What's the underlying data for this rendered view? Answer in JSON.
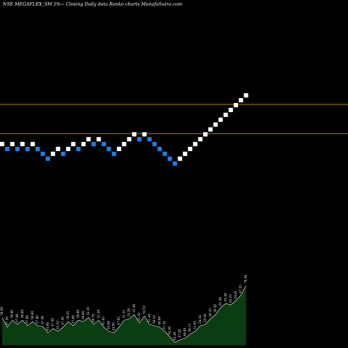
{
  "chart_data": {
    "type": "renko",
    "title": "NSE MEGAFLEX_SM 5%~ Closing Daily data Renko charts MunafaSutra.com",
    "colors": {
      "background": "#000000",
      "up_brick": "#ffffff",
      "down_brick": "#1e7ee6",
      "resistance_line": "#b8860b",
      "volume_area": "#0b3d12",
      "volume_line": "#ffffff"
    },
    "price_lines": [
      34.2,
      30.0
    ],
    "bricks": [
      {
        "price": 28.5,
        "dir": "up"
      },
      {
        "price": 27.8,
        "dir": "down"
      },
      {
        "price": 28.5,
        "dir": "up"
      },
      {
        "price": 27.8,
        "dir": "down"
      },
      {
        "price": 28.5,
        "dir": "up"
      },
      {
        "price": 27.8,
        "dir": "down"
      },
      {
        "price": 28.5,
        "dir": "up"
      },
      {
        "price": 27.8,
        "dir": "down"
      },
      {
        "price": 27.1,
        "dir": "down"
      },
      {
        "price": 26.4,
        "dir": "down"
      },
      {
        "price": 27.1,
        "dir": "up"
      },
      {
        "price": 27.8,
        "dir": "up"
      },
      {
        "price": 27.1,
        "dir": "down"
      },
      {
        "price": 27.8,
        "dir": "up"
      },
      {
        "price": 28.5,
        "dir": "up"
      },
      {
        "price": 27.8,
        "dir": "down"
      },
      {
        "price": 28.5,
        "dir": "up"
      },
      {
        "price": 29.2,
        "dir": "up"
      },
      {
        "price": 28.5,
        "dir": "down"
      },
      {
        "price": 29.2,
        "dir": "up"
      },
      {
        "price": 28.5,
        "dir": "down"
      },
      {
        "price": 27.8,
        "dir": "down"
      },
      {
        "price": 27.1,
        "dir": "down"
      },
      {
        "price": 27.8,
        "dir": "up"
      },
      {
        "price": 28.5,
        "dir": "up"
      },
      {
        "price": 29.2,
        "dir": "up"
      },
      {
        "price": 29.9,
        "dir": "up"
      },
      {
        "price": 29.2,
        "dir": "down"
      },
      {
        "price": 29.9,
        "dir": "up"
      },
      {
        "price": 29.2,
        "dir": "down"
      },
      {
        "price": 28.5,
        "dir": "down"
      },
      {
        "price": 27.8,
        "dir": "down"
      },
      {
        "price": 27.1,
        "dir": "down"
      },
      {
        "price": 26.4,
        "dir": "down"
      },
      {
        "price": 25.7,
        "dir": "down"
      },
      {
        "price": 26.4,
        "dir": "up"
      },
      {
        "price": 27.1,
        "dir": "up"
      },
      {
        "price": 27.8,
        "dir": "up"
      },
      {
        "price": 28.5,
        "dir": "up"
      },
      {
        "price": 29.2,
        "dir": "up"
      },
      {
        "price": 29.9,
        "dir": "up"
      },
      {
        "price": 30.6,
        "dir": "up"
      },
      {
        "price": 31.3,
        "dir": "up"
      },
      {
        "price": 32.0,
        "dir": "up"
      },
      {
        "price": 32.7,
        "dir": "up"
      },
      {
        "price": 33.4,
        "dir": "up"
      },
      {
        "price": 34.1,
        "dir": "up"
      },
      {
        "price": 34.8,
        "dir": "up"
      },
      {
        "price": 35.5,
        "dir": "up"
      }
    ],
    "volume_labels": [
      "50.60",
      "47.30",
      "50.00",
      "47.80",
      "50.60",
      "47.80",
      "50.60",
      "47.80",
      "47.30",
      "45.00",
      "47.30",
      "45.53",
      "47.30",
      "50.25",
      "47.80",
      "50.60",
      "50.00",
      "52.10",
      "49.78",
      "51.28",
      "47.83",
      "45.80",
      "44.95",
      "47.92",
      "51.31",
      "52.28",
      "55.20",
      "51.42",
      "54.52",
      "51.44",
      "50.24",
      "50.09",
      "47.42",
      "44.36",
      "45.40",
      "47.28",
      "49.68",
      "50.13",
      "51.65",
      "54.10",
      "53.28",
      "56.43",
      "58.20",
      "61.20",
      "63.40",
      "62.25",
      "64.01",
      "67.25",
      "70.48"
    ],
    "volume_values": [
      40,
      26,
      36,
      30,
      36,
      28,
      34,
      28,
      27,
      18,
      24,
      20,
      26,
      34,
      28,
      36,
      34,
      40,
      30,
      36,
      26,
      20,
      18,
      26,
      36,
      38,
      44,
      32,
      42,
      30,
      28,
      26,
      20,
      12,
      4,
      8,
      10,
      16,
      20,
      28,
      30,
      38,
      44,
      54,
      60,
      58,
      64,
      72,
      86
    ]
  }
}
